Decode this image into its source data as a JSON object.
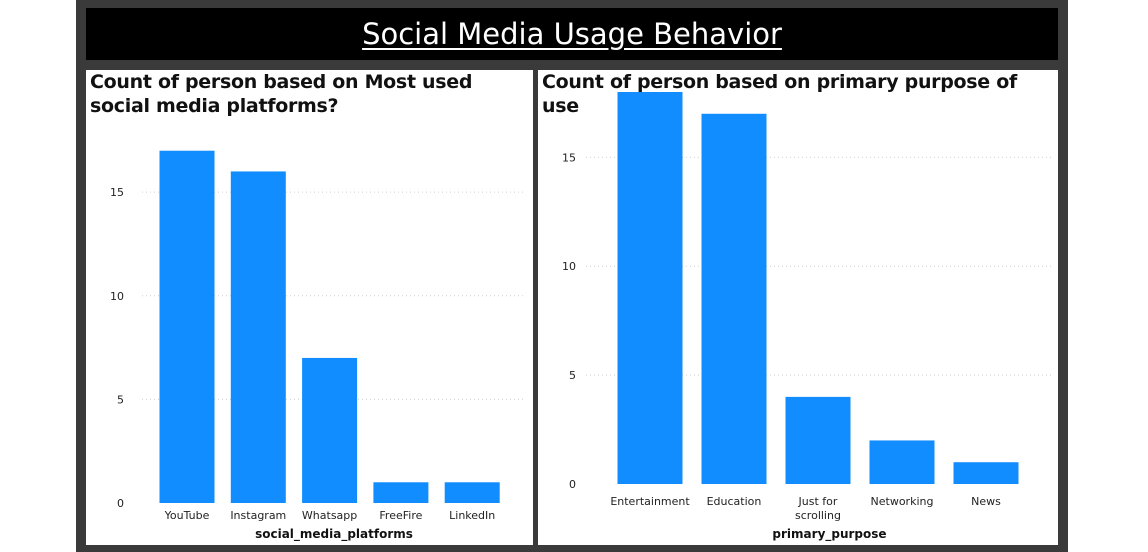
{
  "dashboard": {
    "title": "Social Media Usage Behavior"
  },
  "colors": {
    "bar": "#118DFF",
    "frame": "#3a3a3a",
    "title_bg": "#000000"
  },
  "chart_data": [
    {
      "type": "bar",
      "title": "Count of person based on Most used social media platforms?",
      "xlabel": "social_media_platforms",
      "ylabel": "",
      "categories": [
        "YouTube",
        "Instagram",
        "Whatsapp",
        "FreeFire",
        "LinkedIn"
      ],
      "values": [
        17,
        16,
        7,
        1,
        1
      ],
      "ylim": [
        0,
        18
      ],
      "yticks": [
        0,
        5,
        10,
        15
      ],
      "grid": true,
      "legend": "none"
    },
    {
      "type": "bar",
      "title": "Count of person based on primary purpose of use",
      "xlabel": "primary_purpose",
      "ylabel": "",
      "categories": [
        "Entertainment",
        "Education",
        "Just for scrolling",
        "Networking",
        "News"
      ],
      "values": [
        18,
        17,
        4,
        2,
        1
      ],
      "ylim": [
        0,
        18
      ],
      "yticks": [
        0,
        5,
        10,
        15
      ],
      "grid": true,
      "legend": "none"
    }
  ]
}
